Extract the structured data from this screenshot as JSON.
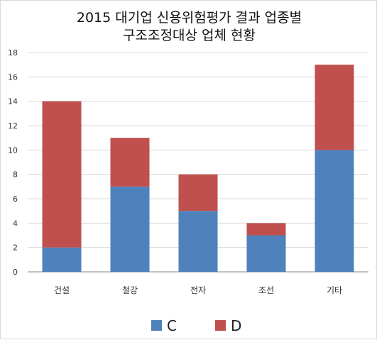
{
  "chart_data": {
    "type": "bar",
    "stacked": true,
    "title_lines": [
      "2015 대기업 신용위험평가 결과 업종별",
      "구조조정대상 업체 현황"
    ],
    "categories": [
      "건설",
      "철강",
      "전자",
      "조선",
      "기타"
    ],
    "series": [
      {
        "name": "C",
        "values": [
          2,
          7,
          5,
          3,
          10
        ],
        "color": "#4f81bd"
      },
      {
        "name": "D",
        "values": [
          12,
          4,
          3,
          1,
          7
        ],
        "color": "#c0504d"
      }
    ],
    "ylim": [
      0,
      18
    ],
    "yticks": [
      0,
      2,
      4,
      6,
      8,
      10,
      12,
      14,
      16,
      18
    ],
    "grid": true,
    "legend_position": "bottom",
    "xlabel": "",
    "ylabel": ""
  }
}
